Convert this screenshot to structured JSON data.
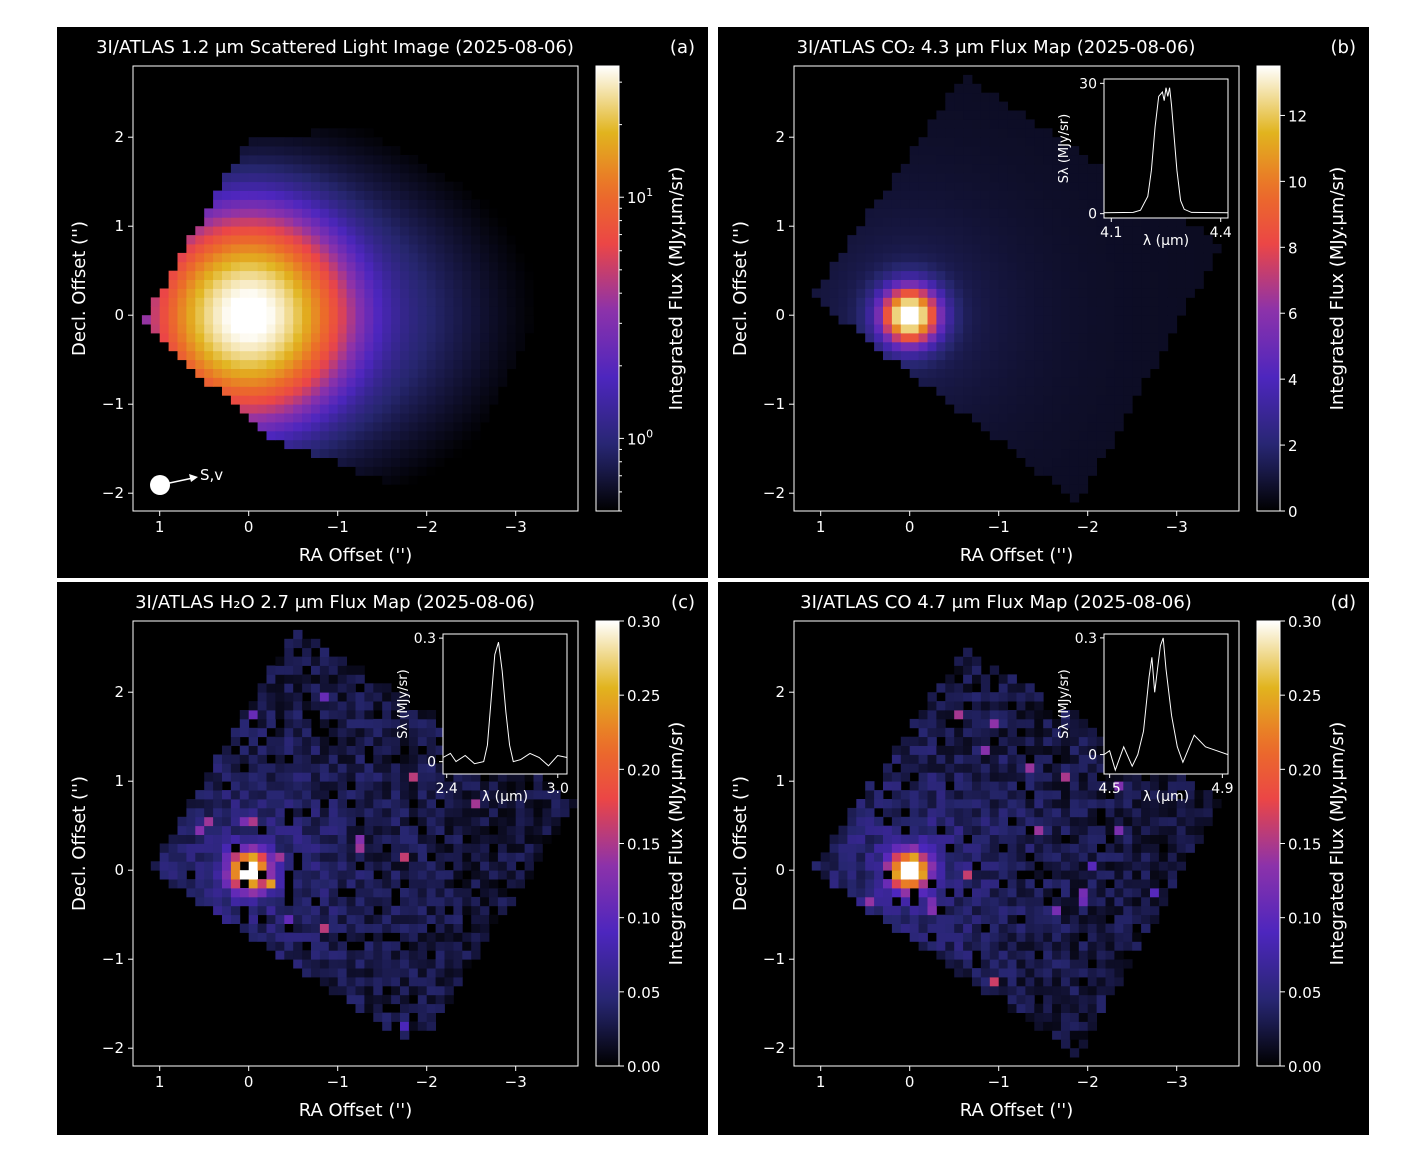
{
  "figure": {
    "background": "#000000"
  },
  "chart_data": [
    {
      "type": "heatmap",
      "panel_label": "(a)",
      "title": "3I/ATLAS 1.2 μm Scattered Light Image (2025-08-06)",
      "xlabel": "RA Offset ('')",
      "ylabel": "Decl. Offset ('')",
      "xlim": [
        1.3,
        -3.7
      ],
      "ylim": [
        -2.2,
        2.8
      ],
      "xticks": [
        1,
        0,
        -1,
        -2,
        -3
      ],
      "xtick_labels": [
        "1",
        "0",
        "−1",
        "−2",
        "−3"
      ],
      "yticks": [
        -2,
        -1,
        0,
        1,
        2
      ],
      "ytick_labels": [
        "−2",
        "−1",
        "0",
        "1",
        "2"
      ],
      "footprint": [
        [
          0.0,
          2.0
        ],
        [
          -1.3,
          2.1
        ],
        [
          -3.6,
          0.7
        ],
        [
          -2.2,
          -2.1
        ],
        [
          -0.3,
          -1.4
        ],
        [
          1.2,
          -0.1
        ]
      ],
      "source": {
        "x": 0.0,
        "y": 0.0,
        "peak": 35,
        "width": 0.5,
        "tail_x": -1.0
      },
      "colorbar": {
        "label": "Integrated Flux (MJy.μm/sr)",
        "scale": "log",
        "range": [
          0.5,
          35
        ],
        "ticks": [
          1,
          10
        ],
        "tick_labels": [
          "10⁰",
          "10¹"
        ]
      },
      "annotation": "S,v"
    },
    {
      "type": "heatmap",
      "panel_label": "(b)",
      "title": "3I/ATLAS CO₂ 4.3 μm Flux Map (2025-08-06)",
      "xlabel": "RA Offset ('')",
      "ylabel": "Decl. Offset ('')",
      "xlim": [
        1.3,
        -3.7
      ],
      "ylim": [
        -2.2,
        2.8
      ],
      "xticks": [
        1,
        0,
        -1,
        -2,
        -3
      ],
      "xtick_labels": [
        "1",
        "0",
        "−1",
        "−2",
        "−3"
      ],
      "yticks": [
        -2,
        -1,
        0,
        1,
        2
      ],
      "ytick_labels": [
        "−2",
        "−1",
        "0",
        "1",
        "2"
      ],
      "footprint": [
        [
          -0.6,
          2.7
        ],
        [
          -3.5,
          0.8
        ],
        [
          -1.9,
          -2.1
        ],
        [
          1.1,
          0.2
        ]
      ],
      "source": {
        "x": 0.0,
        "y": 0.0,
        "peak": 13.5,
        "width": 0.22,
        "tail_x": -0.4
      },
      "colorbar": {
        "label": "Integrated Flux (MJy.μm/sr)",
        "scale": "linear",
        "range": [
          0,
          13.5
        ],
        "ticks": [
          0,
          2,
          4,
          6,
          8,
          10,
          12
        ],
        "tick_labels": [
          "0",
          "2",
          "4",
          "6",
          "8",
          "10",
          "12"
        ]
      },
      "inset": {
        "xlabel": "λ (μm)",
        "ylabel": "Sλ (MJy/sr)",
        "xlim": [
          4.08,
          4.42
        ],
        "ylim": [
          -1,
          31
        ],
        "xticks": [
          4.1,
          4.4
        ],
        "xtick_labels": [
          "4.1",
          "4.4"
        ],
        "yticks": [
          0,
          30
        ],
        "ytick_labels": [
          "0",
          "30"
        ],
        "x": [
          4.08,
          4.16,
          4.18,
          4.2,
          4.21,
          4.22,
          4.23,
          4.24,
          4.245,
          4.25,
          4.255,
          4.26,
          4.265,
          4.27,
          4.28,
          4.29,
          4.3,
          4.32,
          4.42
        ],
        "y": [
          0.2,
          0.3,
          0.8,
          4,
          10,
          20,
          27,
          28,
          26,
          29,
          27,
          29,
          25,
          20,
          10,
          3,
          1,
          0.3,
          0.2
        ]
      }
    },
    {
      "type": "heatmap",
      "panel_label": "(c)",
      "title": "3I/ATLAS H₂O 2.7 μm Flux Map (2025-08-06)",
      "xlabel": "RA Offset ('')",
      "ylabel": "Decl. Offset ('')",
      "xlim": [
        1.3,
        -3.7
      ],
      "ylim": [
        -2.2,
        2.8
      ],
      "xticks": [
        1,
        0,
        -1,
        -2,
        -3
      ],
      "xtick_labels": [
        "1",
        "0",
        "−1",
        "−2",
        "−3"
      ],
      "yticks": [
        -2,
        -1,
        0,
        1,
        2
      ],
      "ytick_labels": [
        "−2",
        "−1",
        "0",
        "1",
        "2"
      ],
      "footprint": [
        [
          -0.5,
          2.7
        ],
        [
          -3.7,
          0.8
        ],
        [
          -1.9,
          -2.0
        ],
        [
          1.1,
          0.0
        ]
      ],
      "source": {
        "x": 0.0,
        "y": 0.0,
        "peak": 0.3,
        "width": 0.15,
        "tail_x": -0.3
      },
      "colorbar": {
        "label": "Integrated Flux (MJy.μm/sr)",
        "scale": "linear",
        "range": [
          0,
          0.3
        ],
        "ticks": [
          0,
          0.05,
          0.1,
          0.15,
          0.2,
          0.25,
          0.3
        ],
        "tick_labels": [
          "0.00",
          "0.05",
          "0.10",
          "0.15",
          "0.20",
          "0.25",
          "0.30"
        ]
      },
      "inset": {
        "xlabel": "λ (μm)",
        "ylabel": "Sλ (MJy/sr)",
        "xlim": [
          2.38,
          3.05
        ],
        "ylim": [
          -0.03,
          0.31
        ],
        "xticks": [
          2.4,
          3.0
        ],
        "xtick_labels": [
          "2.4",
          "3.0"
        ],
        "yticks": [
          0,
          0.3
        ],
        "ytick_labels": [
          "0",
          "0.3"
        ],
        "x": [
          2.38,
          2.42,
          2.45,
          2.5,
          2.55,
          2.6,
          2.62,
          2.64,
          2.66,
          2.68,
          2.7,
          2.72,
          2.74,
          2.76,
          2.8,
          2.85,
          2.9,
          2.95,
          3.0,
          3.05
        ],
        "y": [
          0.01,
          0.02,
          0.0,
          0.015,
          -0.005,
          0.0,
          0.04,
          0.15,
          0.26,
          0.29,
          0.22,
          0.12,
          0.04,
          0.0,
          0.005,
          0.02,
          0.01,
          -0.01,
          0.015,
          0.01
        ]
      }
    },
    {
      "type": "heatmap",
      "panel_label": "(d)",
      "title": "3I/ATLAS CO 4.7 μm Flux Map (2025-08-06)",
      "xlabel": "RA Offset ('')",
      "ylabel": "Decl. Offset ('')",
      "xlim": [
        1.3,
        -3.7
      ],
      "ylim": [
        -2.2,
        2.8
      ],
      "xticks": [
        1,
        0,
        -1,
        -2,
        -3
      ],
      "xtick_labels": [
        "1",
        "0",
        "−1",
        "−2",
        "−3"
      ],
      "yticks": [
        -2,
        -1,
        0,
        1,
        2
      ],
      "ytick_labels": [
        "−2",
        "−1",
        "0",
        "1",
        "2"
      ],
      "footprint": [
        [
          -0.6,
          2.5
        ],
        [
          -3.5,
          0.8
        ],
        [
          -1.9,
          -2.1
        ],
        [
          1.1,
          0.0
        ]
      ],
      "source": {
        "x": 0.0,
        "y": 0.0,
        "peak": 0.3,
        "width": 0.15,
        "tail_x": -0.3
      },
      "colorbar": {
        "label": "Integrated Flux (MJy.μm/sr)",
        "scale": "linear",
        "range": [
          0,
          0.3
        ],
        "ticks": [
          0,
          0.05,
          0.1,
          0.15,
          0.2,
          0.25,
          0.3
        ],
        "tick_labels": [
          "0.00",
          "0.05",
          "0.10",
          "0.15",
          "0.20",
          "0.25",
          "0.30"
        ]
      },
      "inset": {
        "xlabel": "λ (μm)",
        "ylabel": "Sλ (MJy/sr)",
        "xlim": [
          4.48,
          4.92
        ],
        "ylim": [
          -0.05,
          0.31
        ],
        "xticks": [
          4.5,
          4.9
        ],
        "xtick_labels": [
          "4.5",
          "4.9"
        ],
        "yticks": [
          0,
          0.3
        ],
        "ytick_labels": [
          "0",
          "0.3"
        ],
        "x": [
          4.48,
          4.5,
          4.52,
          4.55,
          4.58,
          4.6,
          4.62,
          4.64,
          4.65,
          4.66,
          4.67,
          4.68,
          4.69,
          4.7,
          4.72,
          4.74,
          4.76,
          4.8,
          4.84,
          4.88,
          4.92
        ],
        "y": [
          0.0,
          0.01,
          -0.04,
          0.02,
          -0.03,
          0.0,
          0.06,
          0.2,
          0.25,
          0.16,
          0.22,
          0.28,
          0.3,
          0.22,
          0.1,
          0.02,
          -0.02,
          0.05,
          0.02,
          0.01,
          0.0
        ]
      }
    }
  ]
}
